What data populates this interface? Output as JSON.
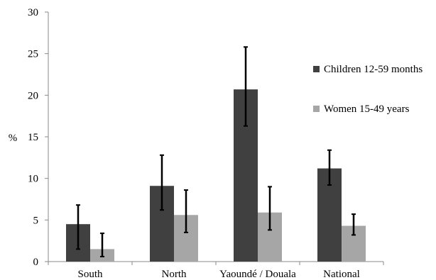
{
  "chart_data": {
    "type": "bar",
    "categories": [
      "South",
      "North",
      "Yaoundé / Douala",
      "National"
    ],
    "series": [
      {
        "name": "Children 12-59 months",
        "color": "#404040",
        "values": [
          4.5,
          9.1,
          20.7,
          11.2
        ],
        "error_low": [
          1.5,
          6.2,
          16.3,
          9.2
        ],
        "error_high": [
          6.8,
          12.8,
          25.8,
          13.4
        ]
      },
      {
        "name": "Women 15-49 years",
        "color": "#a6a6a6",
        "values": [
          1.5,
          5.6,
          5.9,
          4.3
        ],
        "error_low": [
          0.6,
          3.5,
          3.8,
          3.2
        ],
        "error_high": [
          3.4,
          8.6,
          9.0,
          5.7
        ]
      }
    ],
    "ylabel": "%",
    "ylim": [
      0,
      30
    ],
    "yticks": [
      0,
      5,
      10,
      15,
      20,
      25,
      30
    ],
    "legend_position": "right",
    "grid": false
  }
}
